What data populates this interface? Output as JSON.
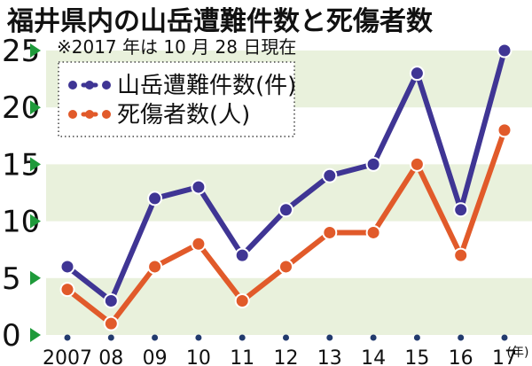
{
  "chart_data": {
    "type": "line",
    "title": "福井県内の山岳遭難件数と死傷者数",
    "note": "※2017 年は 10 月 28 日現在",
    "x": [
      "2007",
      "08",
      "09",
      "10",
      "11",
      "12",
      "13",
      "14",
      "15",
      "16",
      "17"
    ],
    "x_unit": "(年)",
    "ylim": [
      0,
      25
    ],
    "yticks": [
      0,
      5,
      10,
      15,
      20,
      25
    ],
    "legend_position": "top-left",
    "grid_style": "alternating-bands",
    "colors": {
      "band": "#e9f1dc",
      "tick_arrow": "#1e9a3a",
      "legend_border": "#444444"
    },
    "series": [
      {
        "name": "山岳遭難件数(件)",
        "color": "#3f3594",
        "values": [
          6,
          3,
          12,
          13,
          7,
          11,
          14,
          15,
          23,
          11,
          25
        ]
      },
      {
        "name": "死傷者数(人)",
        "color": "#e15a2a",
        "values": [
          4,
          1,
          6,
          8,
          3,
          6,
          9,
          9,
          15,
          7,
          18
        ]
      }
    ]
  }
}
